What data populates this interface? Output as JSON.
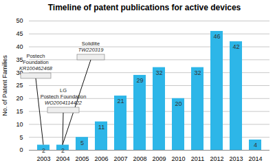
{
  "chart_data": {
    "type": "bar",
    "title": "Timeline of patent publications for active devices",
    "y_label": "No. of Patent Families",
    "categories": [
      "2003",
      "2004",
      "2005",
      "2006",
      "2007",
      "2008",
      "2009",
      "2010",
      "2011",
      "2012",
      "2013",
      "2014"
    ],
    "values": [
      2,
      2,
      5,
      11,
      21,
      29,
      32,
      20,
      32,
      46,
      42,
      4
    ],
    "color": "#2db6e8",
    "ylim": [
      0,
      50
    ],
    "yticks": [
      0,
      5,
      10,
      15,
      20,
      25,
      30,
      35,
      40,
      45,
      50
    ],
    "grid": true,
    "data_labels": true,
    "annotations": [
      {
        "text": [
          "Postech",
          "Foundation",
          "KR100462468"
        ],
        "x": "2003"
      },
      {
        "text": [
          "Solidlite",
          "TW220319"
        ],
        "x": "2004"
      },
      {
        "text": [
          "LG",
          "Postech Foundation",
          "WO2004114422"
        ],
        "x": "2004"
      }
    ]
  }
}
